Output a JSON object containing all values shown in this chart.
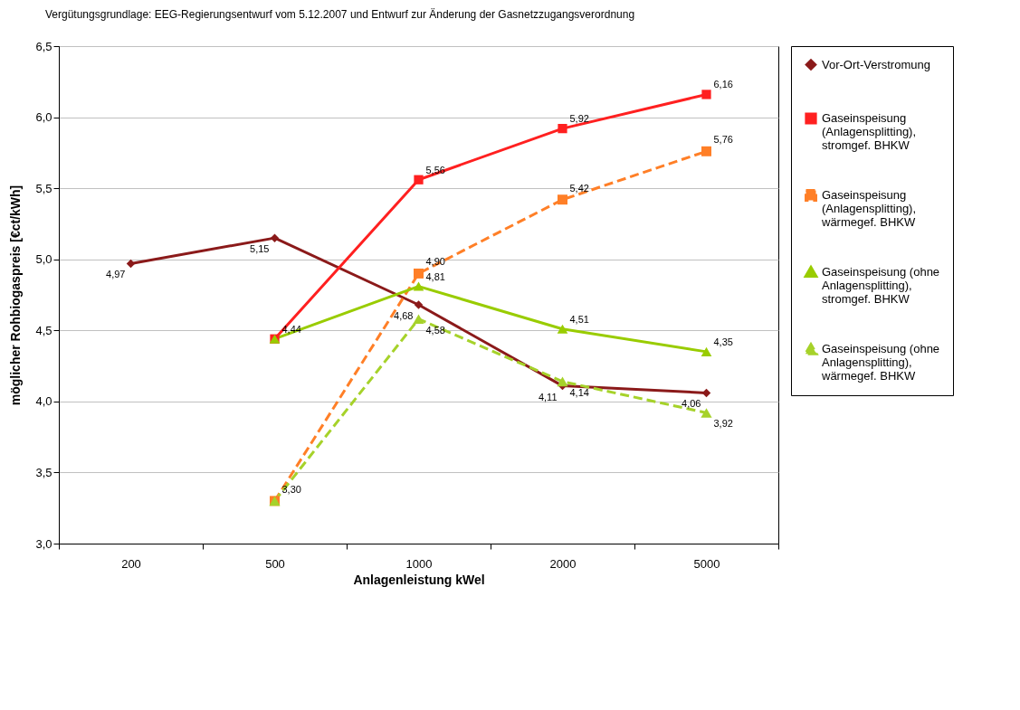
{
  "chart_data": {
    "type": "line",
    "title": "Vergütungsgrundlage: EEG-Regierungsentwurf vom 5.12.2007 und Entwurf zur Änderung der Gasnetzzugangsverordnung",
    "xlabel": "Anlagenleistung kWel",
    "ylabel": "möglicher Rohbiogaspreis [€ct/kWh]",
    "categories": [
      "200",
      "500",
      "1000",
      "2000",
      "5000"
    ],
    "series": [
      {
        "name": "Vor-Ort-Verstromung",
        "color": "#8b1a1a",
        "marker": "diamond",
        "line_style": "solid",
        "values": [
          4.97,
          5.15,
          4.68,
          4.11,
          4.06
        ],
        "value_labels": [
          "4,97",
          "5,15",
          "4,68",
          "4,11",
          "4,06"
        ]
      },
      {
        "name": "Gaseinspeisung (Anlagensplitting), stromgef. BHKW",
        "color": "#ff2020",
        "marker": "square",
        "line_style": "solid",
        "values": [
          null,
          4.44,
          5.56,
          5.92,
          6.16
        ],
        "value_labels": [
          null,
          null,
          "5,56",
          "5,92",
          "6,16"
        ]
      },
      {
        "name": "Gaseinspeisung (Anlagensplitting), wärmegef. BHKW",
        "color": "#ff7f27",
        "marker": "square",
        "line_style": "dashed",
        "values": [
          null,
          3.3,
          4.9,
          5.42,
          5.76
        ],
        "value_labels": [
          null,
          "3,30",
          "4,90",
          "5,42",
          "5,76"
        ]
      },
      {
        "name": "Gaseinspeisung (ohne Anlagensplitting), stromgef. BHKW",
        "color": "#99cc00",
        "marker": "triangle",
        "line_style": "solid",
        "values": [
          null,
          4.44,
          4.81,
          4.51,
          4.35
        ],
        "value_labels": [
          null,
          "4,44",
          "4,81",
          "4,51",
          "4,35"
        ]
      },
      {
        "name": "Gaseinspeisung (ohne Anlagensplitting), wärmegef. BHKW",
        "color": "#a6d22a",
        "marker": "triangle",
        "line_style": "dashed",
        "values": [
          null,
          3.3,
          4.58,
          4.14,
          3.92
        ],
        "value_labels": [
          null,
          null,
          "4,58",
          "4,14",
          "3,92"
        ]
      }
    ],
    "ylim": [
      3.0,
      6.5
    ],
    "yticks": [
      {
        "value": 3.0,
        "label": "3,0"
      },
      {
        "value": 3.5,
        "label": "3,5"
      },
      {
        "value": 4.0,
        "label": "4,0"
      },
      {
        "value": 4.5,
        "label": "4,5"
      },
      {
        "value": 5.0,
        "label": "5,0"
      },
      {
        "value": 5.5,
        "label": "5,5"
      },
      {
        "value": 6.0,
        "label": "6,0"
      },
      {
        "value": 6.5,
        "label": "6,5"
      }
    ],
    "grid": "y",
    "legend": "right"
  }
}
